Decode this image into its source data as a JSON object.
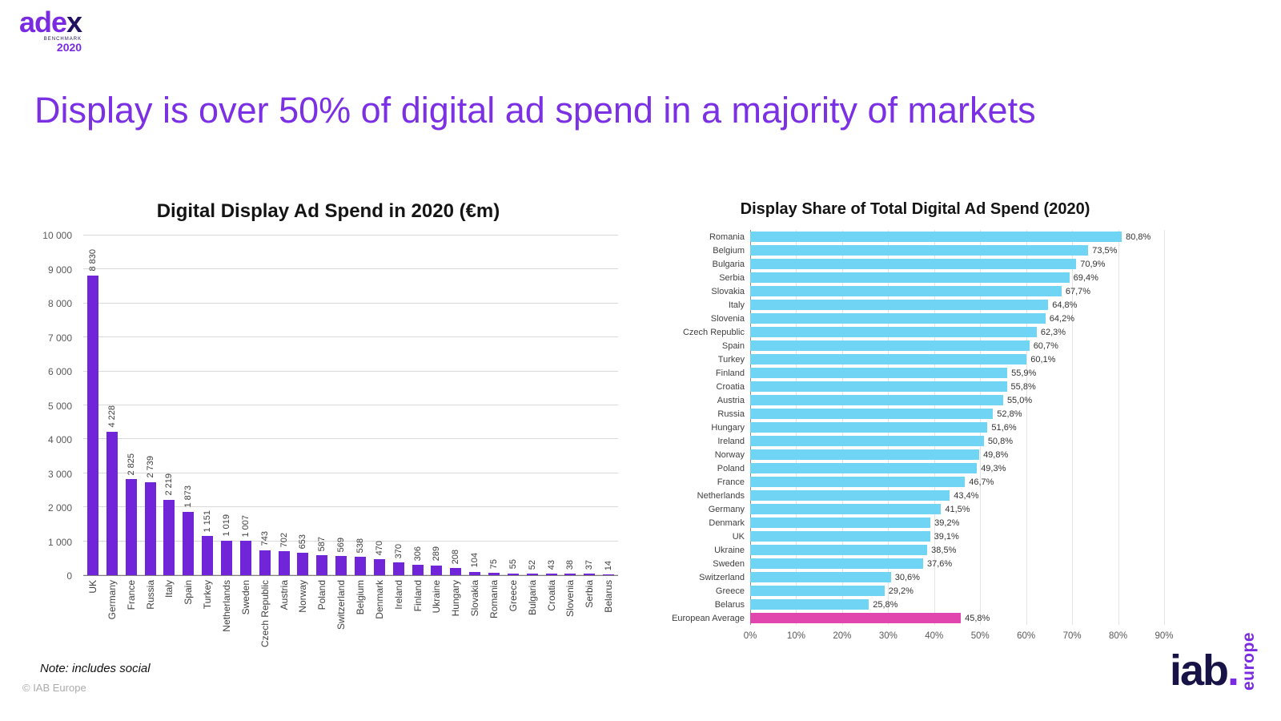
{
  "logo": {
    "part1": "ade",
    "part2": "x",
    "benchmark": "BENCHMARK",
    "year": "2020"
  },
  "title": "Display is over 50% of digital ad spend in a majority of markets",
  "note": "Note: includes social",
  "copyright": "© IAB Europe",
  "iab_logo": {
    "name": "iab",
    "dot": ".",
    "region": "europe"
  },
  "chart_data": [
    {
      "type": "bar",
      "title": "Digital Display Ad Spend in 2020 (€m)",
      "categories": [
        "UK",
        "Germany",
        "France",
        "Russia",
        "Italy",
        "Spain",
        "Turkey",
        "Netherlands",
        "Sweden",
        "Czech Republic",
        "Austria",
        "Norway",
        "Poland",
        "Switzerland",
        "Belgium",
        "Denmark",
        "Ireland",
        "Finland",
        "Ukraine",
        "Hungary",
        "Slovakia",
        "Romania",
        "Greece",
        "Bulgaria",
        "Croatia",
        "Slovenia",
        "Serbia",
        "Belarus"
      ],
      "values": [
        8830,
        4228,
        2825,
        2739,
        2219,
        1873,
        1151,
        1019,
        1007,
        743,
        702,
        653,
        587,
        569,
        538,
        470,
        370,
        306,
        289,
        208,
        104,
        75,
        55,
        52,
        43,
        38,
        37,
        14
      ],
      "value_labels": [
        "8 830",
        "4 228",
        "2 825",
        "2 739",
        "2 219",
        "1 873",
        "1 151",
        "1 019",
        "1 007",
        "743",
        "702",
        "653",
        "587",
        "569",
        "538",
        "470",
        "370",
        "306",
        "289",
        "208",
        "104",
        "75",
        "55",
        "52",
        "43",
        "38",
        "37",
        "14"
      ],
      "ylim": [
        0,
        10000
      ],
      "ytick_labels": [
        "0",
        "1 000",
        "2 000",
        "3 000",
        "4 000",
        "5 000",
        "6 000",
        "7 000",
        "8 000",
        "9 000",
        "10 000"
      ],
      "bar_color": "#7026d8",
      "grid": "horizontal",
      "legend": "none"
    },
    {
      "type": "bar-horizontal",
      "title": "Display Share of Total Digital Ad Spend (2020)",
      "categories": [
        "Romania",
        "Belgium",
        "Bulgaria",
        "Serbia",
        "Slovakia",
        "Italy",
        "Slovenia",
        "Czech Republic",
        "Spain",
        "Turkey",
        "Finland",
        "Croatia",
        "Austria",
        "Russia",
        "Hungary",
        "Ireland",
        "Norway",
        "Poland",
        "France",
        "Netherlands",
        "Germany",
        "Denmark",
        "UK",
        "Ukraine",
        "Sweden",
        "Switzerland",
        "Greece",
        "Belarus",
        "European Average"
      ],
      "values": [
        80.8,
        73.5,
        70.9,
        69.4,
        67.7,
        64.8,
        64.2,
        62.3,
        60.7,
        60.1,
        55.9,
        55.8,
        55.0,
        52.8,
        51.6,
        50.8,
        49.8,
        49.3,
        46.7,
        43.4,
        41.5,
        39.2,
        39.1,
        38.5,
        37.6,
        30.6,
        29.2,
        25.8,
        45.8
      ],
      "value_labels": [
        "80,8%",
        "73,5%",
        "70,9%",
        "69,4%",
        "67,7%",
        "64,8%",
        "64,2%",
        "62,3%",
        "60,7%",
        "60,1%",
        "55,9%",
        "55,8%",
        "55,0%",
        "52,8%",
        "51,6%",
        "50,8%",
        "49,8%",
        "49,3%",
        "46,7%",
        "43,4%",
        "41,5%",
        "39,2%",
        "39,1%",
        "38,5%",
        "37,6%",
        "30,6%",
        "29,2%",
        "25,8%",
        "45,8%"
      ],
      "xlim": [
        0,
        90
      ],
      "xtick_labels": [
        "0%",
        "10%",
        "20%",
        "30%",
        "40%",
        "50%",
        "60%",
        "70%",
        "80%",
        "90%"
      ],
      "bar_color": "#70d5f4",
      "highlight_color": "#e046ae",
      "highlight_index": 28,
      "grid": "vertical",
      "legend": "none"
    }
  ]
}
